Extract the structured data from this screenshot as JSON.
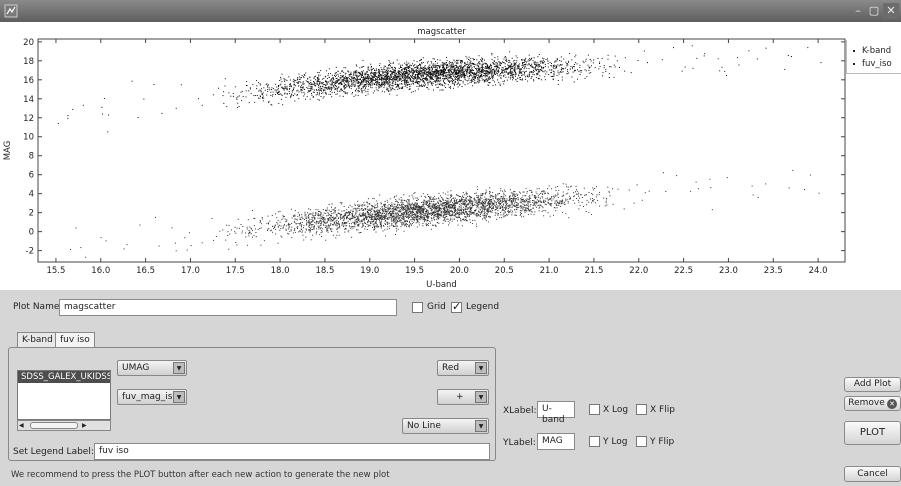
{
  "window": {
    "minimize_glyph": "–",
    "maximize_glyph": "▢",
    "close_glyph": "✕"
  },
  "chart_data": {
    "type": "scatter",
    "title": "magscatter",
    "xlabel": "U-band",
    "ylabel": "MAG",
    "xlim": [
      15.3,
      24.3
    ],
    "ylim": [
      -3.2,
      20.3
    ],
    "x_ticks": [
      "15.5",
      "16.0",
      "16.5",
      "17.0",
      "17.5",
      "18.0",
      "18.5",
      "19.0",
      "19.5",
      "20.0",
      "20.5",
      "21.0",
      "21.5",
      "22.0",
      "22.5",
      "23.0",
      "23.5",
      "24.0"
    ],
    "y_ticks": [
      "-2",
      "0",
      "2",
      "4",
      "6",
      "8",
      "10",
      "12",
      "14",
      "16",
      "18",
      "20"
    ],
    "grid": false,
    "legend_position": "top-right",
    "series": [
      {
        "name": "K-band",
        "color": "#111111",
        "marker": "dot",
        "trend": {
          "x": [
            15.5,
            17.0,
            18.5,
            19.5,
            20.5,
            21.5,
            22.5,
            24.0
          ],
          "y": [
            12.5,
            14.0,
            15.6,
            16.6,
            17.1,
            17.5,
            17.8,
            18.2
          ]
        },
        "x_range": [
          15.5,
          24.1
        ],
        "y_spread": 1.2
      },
      {
        "name": "fuv_iso",
        "color": "#333333",
        "marker": "plus",
        "trend": {
          "x": [
            15.5,
            17.0,
            18.5,
            19.5,
            20.5,
            21.5,
            22.5,
            24.0
          ],
          "y": [
            -2.0,
            -0.5,
            1.2,
            2.2,
            3.0,
            3.7,
            4.2,
            5.0
          ]
        },
        "x_range": [
          15.6,
          24.1
        ],
        "y_spread": 1.3
      }
    ]
  },
  "controls": {
    "plot_name_label": "Plot Name:",
    "plot_name_value": "magscatter",
    "grid_label": "Grid",
    "grid_checked": false,
    "legend_label": "Legend",
    "legend_checked": true,
    "tabs": [
      "K-band",
      "fuv iso"
    ],
    "active_tab": 1,
    "dataset_list": [
      "SDSS_GALEX_UKIDSS_"
    ],
    "x_column": "UMAG",
    "y_column": "fuv_mag_iso",
    "color": "Red",
    "marker": "+",
    "line_style": "No Line",
    "set_legend_label": "Set Legend Label:",
    "legend_label_value": "fuv iso",
    "xlabel_label": "XLabel:",
    "xlabel_value": "U-band",
    "ylabel_label": "YLabel:",
    "ylabel_value": "MAG",
    "xlog_label": "X Log",
    "xflip_label": "X Flip",
    "ylog_label": "Y Log",
    "yflip_label": "Y Flip",
    "add_plot": "Add Plot",
    "remove": "Remove",
    "plot": "PLOT",
    "cancel": "Cancel",
    "status": "We recommend to press the PLOT button after each new action to generate the new plot"
  }
}
